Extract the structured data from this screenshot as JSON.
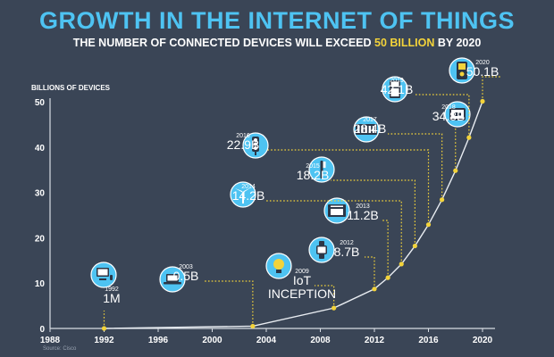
{
  "header": {
    "title": "GROWTH IN THE INTERNET OF THINGS",
    "subtitle_pre": "THE NUMBER OF CONNECTED DEVICES WILL EXCEED ",
    "subtitle_highlight": "50 BILLION",
    "subtitle_post": " BY 2020"
  },
  "footer": {
    "source": "Source: Cisco"
  },
  "colors": {
    "background": "#3a4556",
    "accent": "#4ec3f2",
    "highlight": "#f3d33a",
    "line": "#ffffff"
  },
  "chart_data": {
    "type": "line",
    "ylabel": "BILLIONS OF DEVICES",
    "xlim": [
      1988,
      2020
    ],
    "ylim": [
      0,
      50
    ],
    "xticks": [
      1988,
      1992,
      1996,
      2000,
      2004,
      2008,
      2012,
      2016,
      2020
    ],
    "yticks": [
      0,
      10,
      20,
      30,
      40,
      50
    ],
    "grid": false,
    "x": [
      1992,
      2003,
      2009,
      2012,
      2013,
      2014,
      2015,
      2016,
      2017,
      2018,
      2019,
      2020
    ],
    "values": [
      0.001,
      0.5,
      4.5,
      8.7,
      11.2,
      14.2,
      18.2,
      22.9,
      28.4,
      34.8,
      42.1,
      50.1
    ],
    "annotations": [
      {
        "year": "1992",
        "label": "1M",
        "icon": "computer-icon"
      },
      {
        "year": "2003",
        "label": "0.5B",
        "icon": "laptop-icon"
      },
      {
        "year": "2009",
        "label": "IoT",
        "label2": "INCEPTION",
        "icon": "lightbulb-icon"
      },
      {
        "year": "2012",
        "label": "8.7B",
        "icon": "smartwatch-icon"
      },
      {
        "year": "2013",
        "label": "11.2B",
        "icon": "oven-icon"
      },
      {
        "year": "2014",
        "label": "14.2B",
        "icon": "wind-turbine-icon"
      },
      {
        "year": "2015",
        "label": "18.2B",
        "icon": "toothbrush-icon"
      },
      {
        "year": "2016",
        "label": "22.9B",
        "icon": "traffic-light-icon"
      },
      {
        "year": "2017",
        "label": "28.4B",
        "icon": "radiator-icon"
      },
      {
        "year": "2018",
        "label": "34.8B",
        "icon": "thermostat-icon"
      },
      {
        "year": "2019",
        "label": "42.1B",
        "icon": "refrigerator-icon"
      },
      {
        "year": "2020",
        "label": "50.1B",
        "icon": "door-lock-icon"
      }
    ]
  }
}
